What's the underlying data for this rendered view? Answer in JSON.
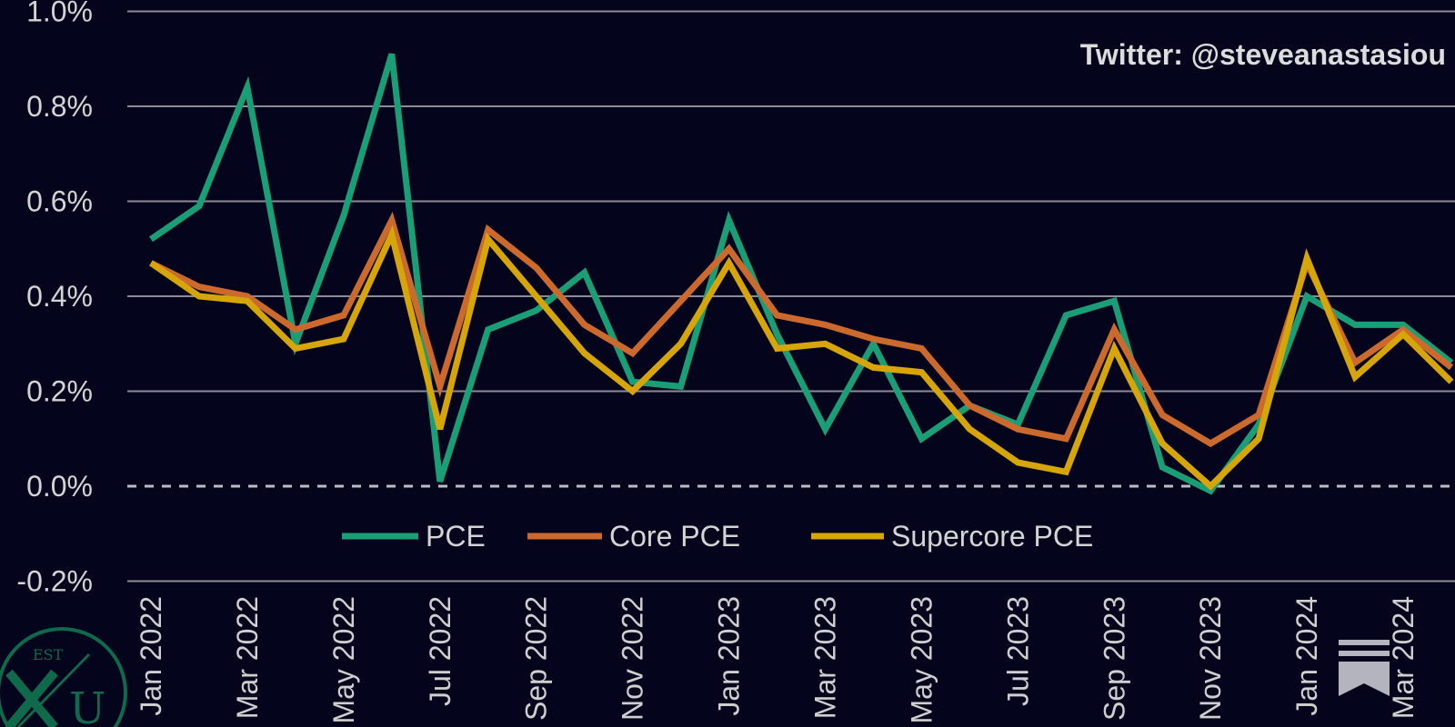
{
  "chart_data": {
    "type": "line",
    "title": "",
    "xlabel": "",
    "ylabel": "",
    "credit": "Twitter: @steveanastasiou",
    "ylim": [
      -0.2,
      1.0
    ],
    "y_ticks": [
      "-0.2%",
      "0.0%",
      "0.2%",
      "0.4%",
      "0.6%",
      "0.8%",
      "1.0%"
    ],
    "x_tick_labels": [
      "Jan 2022",
      "Mar 2022",
      "May 2022",
      "Jul 2022",
      "Sep 2022",
      "Nov 2022",
      "Jan 2023",
      "Mar 2023",
      "May 2023",
      "Jul 2023",
      "Sep 2023",
      "Nov 2023",
      "Jan 2024",
      "Mar 2024"
    ],
    "categories": [
      "Jan 2022",
      "Feb 2022",
      "Mar 2022",
      "Apr 2022",
      "May 2022",
      "Jun 2022",
      "Jul 2022",
      "Aug 2022",
      "Sep 2022",
      "Oct 2022",
      "Nov 2022",
      "Dec 2022",
      "Jan 2023",
      "Feb 2023",
      "Mar 2023",
      "Apr 2023",
      "May 2023",
      "Jun 2023",
      "Jul 2023",
      "Aug 2023",
      "Sep 2023",
      "Oct 2023",
      "Nov 2023",
      "Dec 2023",
      "Jan 2024",
      "Feb 2024",
      "Mar 2024",
      "Apr 2024"
    ],
    "series": [
      {
        "name": "PCE",
        "color": "#1a9e76",
        "values": [
          0.52,
          0.59,
          0.84,
          0.3,
          0.57,
          0.91,
          0.01,
          0.33,
          0.37,
          0.45,
          0.22,
          0.21,
          0.56,
          0.32,
          0.12,
          0.3,
          0.1,
          0.17,
          0.13,
          0.36,
          0.39,
          0.04,
          -0.01,
          0.13,
          0.4,
          0.34,
          0.34,
          0.26
        ]
      },
      {
        "name": "Core PCE",
        "color": "#cc6a2e",
        "values": [
          0.47,
          0.42,
          0.4,
          0.33,
          0.36,
          0.56,
          0.21,
          0.54,
          0.46,
          0.34,
          0.28,
          0.39,
          0.5,
          0.36,
          0.34,
          0.31,
          0.29,
          0.17,
          0.12,
          0.1,
          0.33,
          0.15,
          0.09,
          0.15,
          0.47,
          0.26,
          0.33,
          0.25
        ]
      },
      {
        "name": "Supercore PCE",
        "color": "#d6a50a",
        "values": [
          0.47,
          0.4,
          0.39,
          0.29,
          0.31,
          0.53,
          0.12,
          0.52,
          0.4,
          0.28,
          0.2,
          0.3,
          0.47,
          0.29,
          0.3,
          0.25,
          0.24,
          0.12,
          0.05,
          0.03,
          0.29,
          0.09,
          0.0,
          0.1,
          0.48,
          0.23,
          0.32,
          0.22
        ]
      }
    ],
    "legend_position": "bottom-center"
  }
}
